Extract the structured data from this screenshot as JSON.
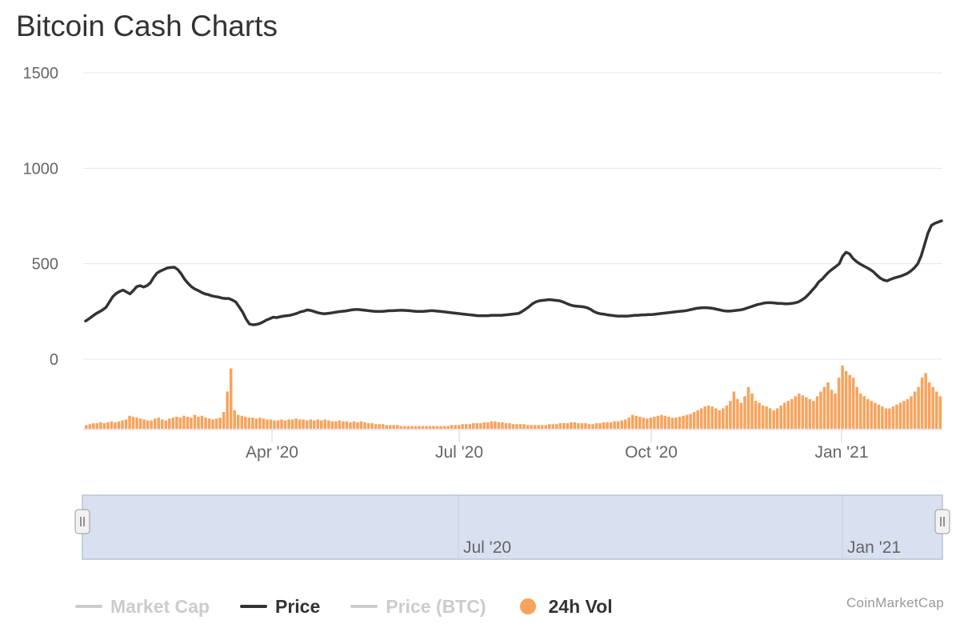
{
  "chart_data": {
    "type": "line",
    "title": "Bitcoin Cash Charts",
    "ylim": [
      0,
      1500
    ],
    "y_ticks": [
      "0",
      "500",
      "1000",
      "1500"
    ],
    "x_labels": [
      "Apr '20",
      "Jul '20",
      "Oct '20",
      "Jan '21"
    ],
    "navigator_labels": [
      "Jul '20",
      "Jan '21"
    ],
    "grid": true,
    "series": [
      {
        "name": "Price",
        "color": "#333333",
        "values": [
          200,
          212,
          225,
          238,
          248,
          258,
          272,
          300,
          328,
          345,
          355,
          362,
          352,
          342,
          360,
          380,
          385,
          378,
          385,
          400,
          430,
          452,
          462,
          470,
          478,
          480,
          482,
          470,
          448,
          420,
          398,
          380,
          368,
          360,
          350,
          342,
          338,
          332,
          328,
          325,
          320,
          318,
          318,
          310,
          300,
          275,
          248,
          212,
          185,
          180,
          182,
          186,
          195,
          205,
          212,
          220,
          218,
          222,
          226,
          228,
          230,
          235,
          240,
          248,
          252,
          258,
          255,
          250,
          244,
          240,
          238,
          240,
          242,
          245,
          248,
          250,
          252,
          255,
          258,
          260,
          260,
          258,
          256,
          254,
          252,
          250,
          250,
          250,
          252,
          254,
          254,
          255,
          256,
          256,
          255,
          254,
          252,
          250,
          250,
          250,
          252,
          254,
          254,
          252,
          250,
          248,
          246,
          244,
          242,
          240,
          238,
          236,
          234,
          232,
          230,
          228,
          228,
          228,
          228,
          230,
          230,
          230,
          230,
          232,
          234,
          236,
          238,
          240,
          250,
          262,
          275,
          290,
          300,
          306,
          308,
          310,
          312,
          310,
          308,
          306,
          300,
          292,
          285,
          280,
          278,
          276,
          274,
          270,
          262,
          250,
          242,
          238,
          236,
          232,
          230,
          228,
          226,
          226,
          226,
          226,
          228,
          230,
          230,
          232,
          232,
          234,
          234,
          236,
          238,
          240,
          242,
          244,
          246,
          248,
          250,
          252,
          254,
          258,
          262,
          266,
          268,
          270,
          270,
          268,
          266,
          262,
          258,
          254,
          252,
          252,
          254,
          256,
          258,
          262,
          268,
          274,
          280,
          286,
          290,
          294,
          296,
          296,
          294,
          292,
          292,
          290,
          290,
          292,
          295,
          300,
          310,
          322,
          340,
          360,
          380,
          405,
          420,
          440,
          458,
          472,
          485,
          500,
          540,
          560,
          552,
          528,
          512,
          500,
          490,
          480,
          470,
          458,
          440,
          425,
          415,
          410,
          418,
          425,
          430,
          435,
          442,
          450,
          462,
          478,
          500,
          540,
          600,
          660,
          700,
          712,
          718,
          725
        ]
      },
      {
        "name": "24h Vol",
        "color": "#f7a35c",
        "values": [
          4,
          5,
          6,
          6,
          7,
          6,
          7,
          8,
          7,
          8,
          9,
          10,
          14,
          13,
          12,
          11,
          10,
          9,
          9,
          11,
          12,
          10,
          9,
          11,
          12,
          13,
          12,
          14,
          13,
          12,
          15,
          13,
          14,
          12,
          11,
          10,
          11,
          12,
          18,
          40,
          65,
          20,
          15,
          14,
          13,
          12,
          12,
          11,
          12,
          11,
          10,
          10,
          9,
          9,
          10,
          9,
          10,
          10,
          11,
          10,
          10,
          9,
          10,
          9,
          10,
          9,
          10,
          9,
          8,
          8,
          9,
          8,
          8,
          7,
          8,
          7,
          8,
          7,
          6,
          6,
          5,
          5,
          5,
          4,
          4,
          4,
          4,
          3,
          3,
          3,
          3,
          3,
          3,
          3,
          3,
          3,
          3,
          3,
          3,
          3,
          3,
          4,
          4,
          4,
          5,
          5,
          5,
          6,
          6,
          6,
          7,
          7,
          8,
          8,
          7,
          7,
          6,
          6,
          5,
          5,
          5,
          5,
          4,
          4,
          4,
          4,
          4,
          4,
          5,
          5,
          5,
          6,
          6,
          6,
          7,
          7,
          6,
          6,
          6,
          5,
          5,
          6,
          6,
          7,
          7,
          7,
          8,
          8,
          9,
          10,
          12,
          15,
          14,
          13,
          12,
          11,
          12,
          13,
          14,
          15,
          14,
          13,
          12,
          12,
          13,
          14,
          15,
          16,
          18,
          20,
          22,
          24,
          25,
          24,
          22,
          20,
          22,
          25,
          30,
          40,
          32,
          28,
          35,
          45,
          38,
          30,
          28,
          25,
          24,
          22,
          20,
          22,
          25,
          28,
          30,
          32,
          35,
          38,
          36,
          34,
          32,
          30,
          35,
          40,
          45,
          50,
          42,
          38,
          55,
          68,
          62,
          58,
          55,
          45,
          38,
          35,
          32,
          30,
          28,
          26,
          24,
          22,
          22,
          24,
          26,
          28,
          30,
          32,
          35,
          40,
          45,
          55,
          60,
          50,
          45,
          40,
          35
        ]
      }
    ]
  },
  "legend": {
    "items": [
      "Market Cap",
      "Price",
      "Price (BTC)",
      "24h Vol"
    ],
    "active": [
      false,
      true,
      false,
      true
    ],
    "active_color": "#333333",
    "inactive_color": "#cccccc",
    "vol_color": "#f7a35c"
  },
  "credits": "CoinMarketCap"
}
